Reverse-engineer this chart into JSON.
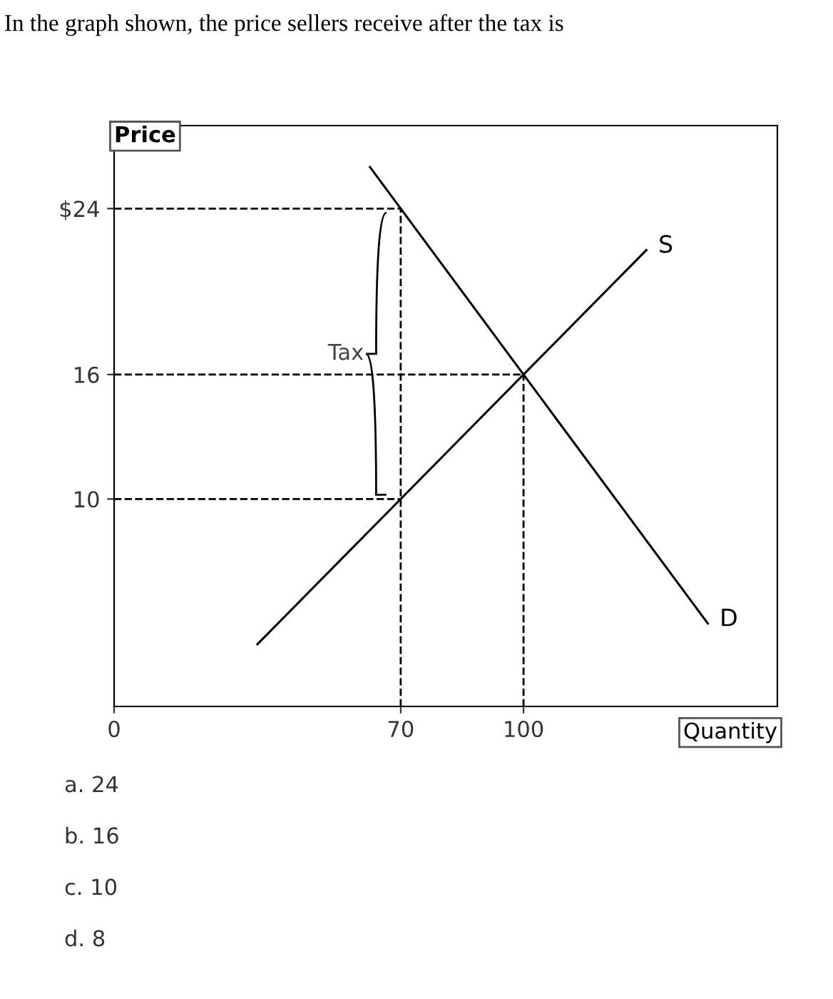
{
  "chart_data": {
    "type": "line",
    "title": "In the graph shown, the price sellers receive after the tax is",
    "xlabel": "Quantity",
    "ylabel": "Price",
    "series": [
      {
        "name": "S",
        "color": "#000000",
        "x": [
          35,
          130
        ],
        "values": [
          3,
          22
        ]
      },
      {
        "name": "D",
        "color": "#000000",
        "x": [
          62.5,
          145
        ],
        "values": [
          26,
          4
        ]
      }
    ],
    "xlim": [
      0,
      162
    ],
    "ylim": [
      0,
      28
    ],
    "xticks": [
      0,
      70,
      100
    ],
    "yticks": [
      10,
      16,
      {
        "value": 24,
        "label": "$24"
      }
    ],
    "ref_lines": [
      {
        "axis": "y",
        "value": 24,
        "line_style": "dashed",
        "color": "#000000"
      },
      {
        "axis": "y",
        "value": 16,
        "line_style": "dashed",
        "color": "#000000"
      },
      {
        "axis": "y",
        "value": 10,
        "line_style": "dashed",
        "color": "#000000"
      },
      {
        "axis": "x",
        "value": 70,
        "line_style": "dashed",
        "color": "#000000"
      },
      {
        "axis": "x",
        "value": 100,
        "line_style": "dashed",
        "color": "#000000"
      }
    ],
    "annotations": [
      {
        "text": "Tax",
        "x": 70,
        "y": 17
      },
      "a. 24",
      "b. 16",
      "c. 10",
      "d. 8"
    ],
    "grid": false,
    "marker": "none",
    "line_style": "solid"
  }
}
